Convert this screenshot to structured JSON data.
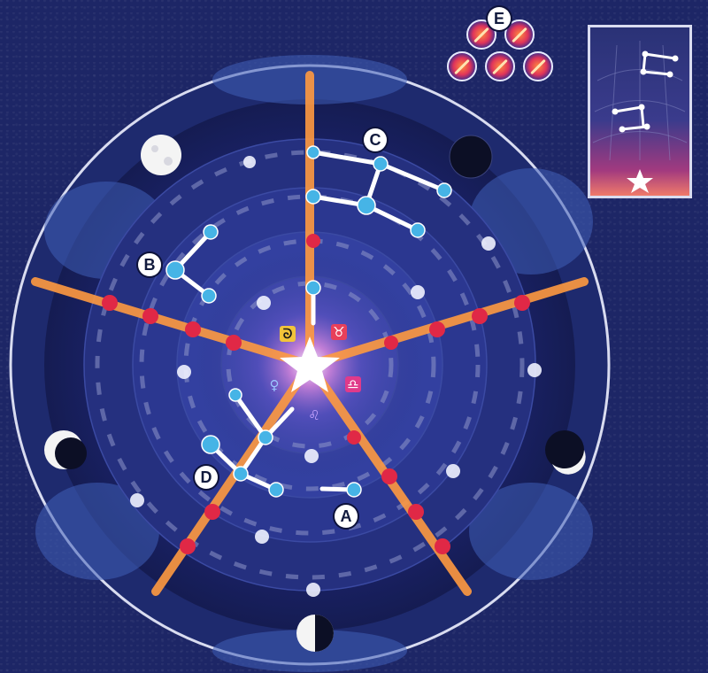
{
  "board": {
    "labels": {
      "a": "A",
      "b": "B",
      "c": "C",
      "d": "D",
      "e": "E"
    },
    "center_symbols": [
      "ᘐ",
      "♉",
      "♀",
      "♎",
      "♌"
    ],
    "colors": {
      "background": "#1d2666",
      "beam": "#ff8a3c",
      "node_red": "#e02846",
      "node_blue": "#46b4e6",
      "node_white": "#f0f2ff"
    }
  },
  "token_stack": {
    "count": 5
  },
  "icons": [
    "moon-full-icon",
    "moon-new-icon",
    "moon-half-icon",
    "star-icon"
  ]
}
